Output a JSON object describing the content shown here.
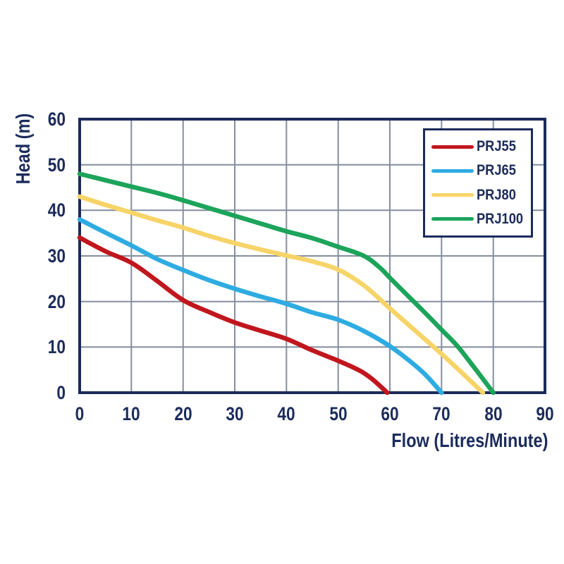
{
  "style": {
    "background": "#FFFFFF",
    "text_color": "#1B2B5B",
    "frame_color": "#1B2B5B",
    "grid_color": "#848E9E",
    "legend_border_color": "#1B2B5B"
  },
  "chart_data": {
    "type": "line",
    "title": "",
    "xlabel": "Flow (Litres/Minute)",
    "ylabel": "Head (m)",
    "xlim": [
      0,
      90
    ],
    "ylim": [
      0,
      60
    ],
    "x_ticks": [
      0,
      10,
      20,
      30,
      40,
      50,
      60,
      70,
      80,
      90
    ],
    "y_ticks": [
      0,
      10,
      20,
      30,
      40,
      50,
      60
    ],
    "grid": true,
    "legend_position": "top-right",
    "series": [
      {
        "name": "PRJ55",
        "color": "#C1161D",
        "points": [
          [
            0,
            34
          ],
          [
            5,
            31
          ],
          [
            10,
            28.5
          ],
          [
            15,
            24.5
          ],
          [
            20,
            20.3
          ],
          [
            25,
            17.7
          ],
          [
            30,
            15.4
          ],
          [
            35,
            13.6
          ],
          [
            40,
            11.8
          ],
          [
            45,
            9.3
          ],
          [
            50,
            7
          ],
          [
            53,
            5.5
          ],
          [
            55,
            4.3
          ],
          [
            57,
            2.6
          ],
          [
            59.5,
            0
          ]
        ]
      },
      {
        "name": "PRJ65",
        "color": "#2EACE2",
        "points": [
          [
            0,
            38
          ],
          [
            5,
            35.1
          ],
          [
            10,
            32.3
          ],
          [
            15,
            29.3
          ],
          [
            20,
            26.9
          ],
          [
            25,
            24.7
          ],
          [
            30,
            22.8
          ],
          [
            35,
            21.1
          ],
          [
            40,
            19.5
          ],
          [
            45,
            17.6
          ],
          [
            50,
            16
          ],
          [
            55,
            13.5
          ],
          [
            60,
            10.2
          ],
          [
            64,
            6.8
          ],
          [
            67,
            3.8
          ],
          [
            70,
            0
          ]
        ]
      },
      {
        "name": "PRJ80",
        "color": "#F7D468",
        "points": [
          [
            0,
            43
          ],
          [
            5,
            41.2
          ],
          [
            10,
            39.5
          ],
          [
            15,
            37.8
          ],
          [
            20,
            36.2
          ],
          [
            25,
            34.4
          ],
          [
            30,
            32.8
          ],
          [
            35,
            31.4
          ],
          [
            40,
            30.1
          ],
          [
            45,
            28.8
          ],
          [
            50,
            27
          ],
          [
            55,
            23.5
          ],
          [
            60,
            18.5
          ],
          [
            65,
            13.5
          ],
          [
            70,
            8.5
          ],
          [
            74,
            4.3
          ],
          [
            78,
            0
          ]
        ]
      },
      {
        "name": "PRJ100",
        "color": "#1CA45B",
        "points": [
          [
            0,
            48
          ],
          [
            5,
            46.6
          ],
          [
            10,
            45.2
          ],
          [
            15,
            43.8
          ],
          [
            20,
            42.2
          ],
          [
            25,
            40.5
          ],
          [
            30,
            38.8
          ],
          [
            35,
            37.1
          ],
          [
            40,
            35.4
          ],
          [
            45,
            33.9
          ],
          [
            50,
            32
          ],
          [
            55,
            30
          ],
          [
            58,
            27.5
          ],
          [
            60,
            25.2
          ],
          [
            63,
            21.8
          ],
          [
            67,
            17.3
          ],
          [
            70,
            13.8
          ],
          [
            73,
            10.3
          ],
          [
            76,
            6
          ],
          [
            80,
            0
          ]
        ]
      }
    ]
  }
}
